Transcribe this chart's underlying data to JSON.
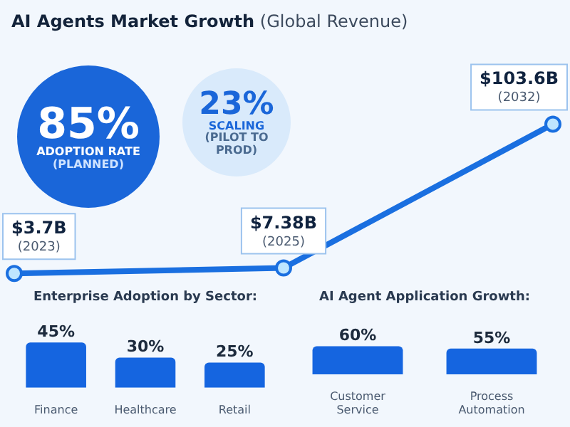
{
  "chart_data": [
    {
      "type": "line",
      "title": "AI Agents Market Growth",
      "subtitle": "(Global Revenue)",
      "categories": [
        "(2023)",
        "(2025)",
        "(2032)"
      ],
      "values": [
        3.7,
        7.38,
        103.6
      ],
      "value_labels": [
        "$3.7B",
        "$7.38B",
        "$103.6B"
      ],
      "color": "#1a6fe0",
      "marker": "circle",
      "tick_labels": false
    },
    {
      "type": "other",
      "annotations": [
        "85%",
        "ADOPTION RATE",
        "(PLANNED)"
      ]
    },
    {
      "type": "other",
      "annotations": [
        "23%",
        "SCALING",
        "(PILOT TO PROD)"
      ]
    },
    {
      "type": "bar",
      "title": "Enterprise Adoption by Sector:",
      "categories": [
        "Finance",
        "Healthcare",
        "Retail"
      ],
      "values": [
        45,
        30,
        25
      ],
      "value_labels": [
        "45%",
        "30%",
        "25%"
      ],
      "color": "#1565e0",
      "tick_labels": "x"
    },
    {
      "type": "bar",
      "title": "AI Agent Application Growth:",
      "categories": [
        "Customer Service",
        "Process Automation"
      ],
      "values": [
        60,
        55
      ],
      "value_labels": [
        "60%",
        "55%"
      ],
      "color": "#1565e0",
      "tick_labels": "x"
    }
  ]
}
